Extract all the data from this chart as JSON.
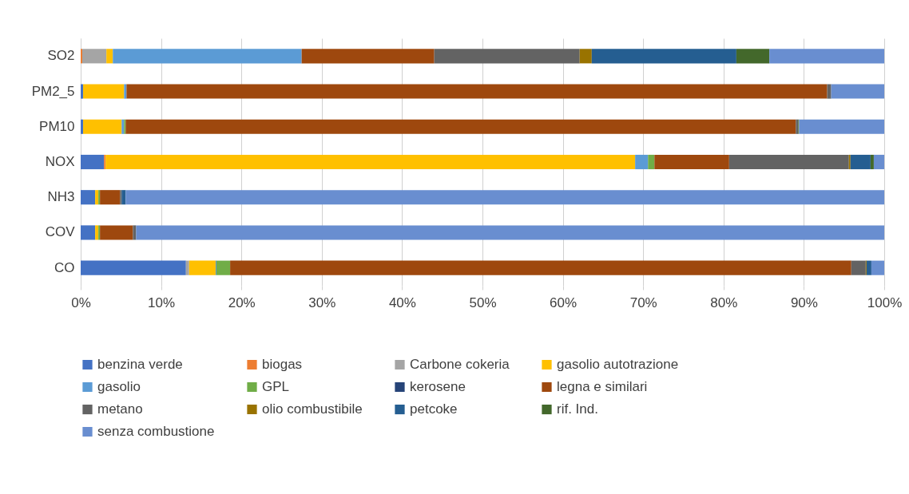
{
  "chart_data": {
    "type": "bar",
    "orientation": "horizontal",
    "stacked": true,
    "categories": [
      "SO2",
      "PM2_5",
      "PM10",
      "NOX",
      "NH3",
      "COV",
      "CO"
    ],
    "series": [
      {
        "name": "benzina verde",
        "color": "#4472c4",
        "values": [
          0,
          0.3,
          0.3,
          2.9,
          1.8,
          1.8,
          13.1
        ]
      },
      {
        "name": "biogas",
        "color": "#ed7d31",
        "values": [
          0.2,
          0,
          0,
          0.2,
          0,
          0,
          0
        ]
      },
      {
        "name": "Carbone cokeria",
        "color": "#a5a5a5",
        "values": [
          3.0,
          0,
          0,
          null,
          0,
          0,
          0.4
        ]
      },
      {
        "name": "gasolio autotrazione",
        "color": "#ffc000",
        "values": [
          0.8,
          5.1,
          4.8,
          65.9,
          0.4,
          0.4,
          3.3
        ]
      },
      {
        "name": "gasolio",
        "color": "#5b9bd5",
        "values": [
          23.5,
          0.3,
          0.3,
          1.6,
          0,
          0,
          0.1
        ]
      },
      {
        "name": "GPL",
        "color": "#70ad47",
        "values": [
          0,
          0,
          0.2,
          0.8,
          0.2,
          0.2,
          1.7
        ]
      },
      {
        "name": "kerosene",
        "color": "#264478",
        "values": [
          0,
          0,
          0,
          0,
          0,
          0,
          0
        ]
      },
      {
        "name": "legna e similari",
        "color": "#9e480e",
        "values": [
          16.5,
          87.2,
          83.4,
          9.3,
          2.5,
          4.1,
          77.3
        ]
      },
      {
        "name": "metano",
        "color": "#636363",
        "values": [
          18.1,
          0.5,
          0.3,
          14.9,
          0.2,
          0.4,
          1.8
        ]
      },
      {
        "name": "olio combustibile",
        "color": "#997300",
        "values": [
          1.5,
          0,
          0,
          0.2,
          0,
          0,
          0.1
        ]
      },
      {
        "name": "petcoke",
        "color": "#255e91",
        "values": [
          18.0,
          0,
          0,
          2.5,
          0.5,
          0,
          0.6
        ]
      },
      {
        "name": "rif. Ind.",
        "color": "#43682b",
        "values": [
          4.1,
          0,
          0.1,
          0.4,
          0,
          0,
          0
        ]
      },
      {
        "name": "senza combustione",
        "color": "#698ed0",
        "values": [
          14.3,
          6.6,
          10.6,
          1.3,
          94.4,
          93.1,
          1.6
        ]
      }
    ],
    "xlim": [
      0,
      100
    ],
    "xticks": [
      {
        "value": 0,
        "label": "0%"
      },
      {
        "value": 10,
        "label": "10%"
      },
      {
        "value": 20,
        "label": "20%"
      },
      {
        "value": 30,
        "label": "30%"
      },
      {
        "value": 40,
        "label": "40%"
      },
      {
        "value": 50,
        "label": "50%"
      },
      {
        "value": 60,
        "label": "60%"
      },
      {
        "value": 70,
        "label": "70%"
      },
      {
        "value": 80,
        "label": "80%"
      },
      {
        "value": 90,
        "label": "90%"
      },
      {
        "value": 100,
        "label": "100%"
      }
    ],
    "grid": "x",
    "legend": "bottom"
  }
}
